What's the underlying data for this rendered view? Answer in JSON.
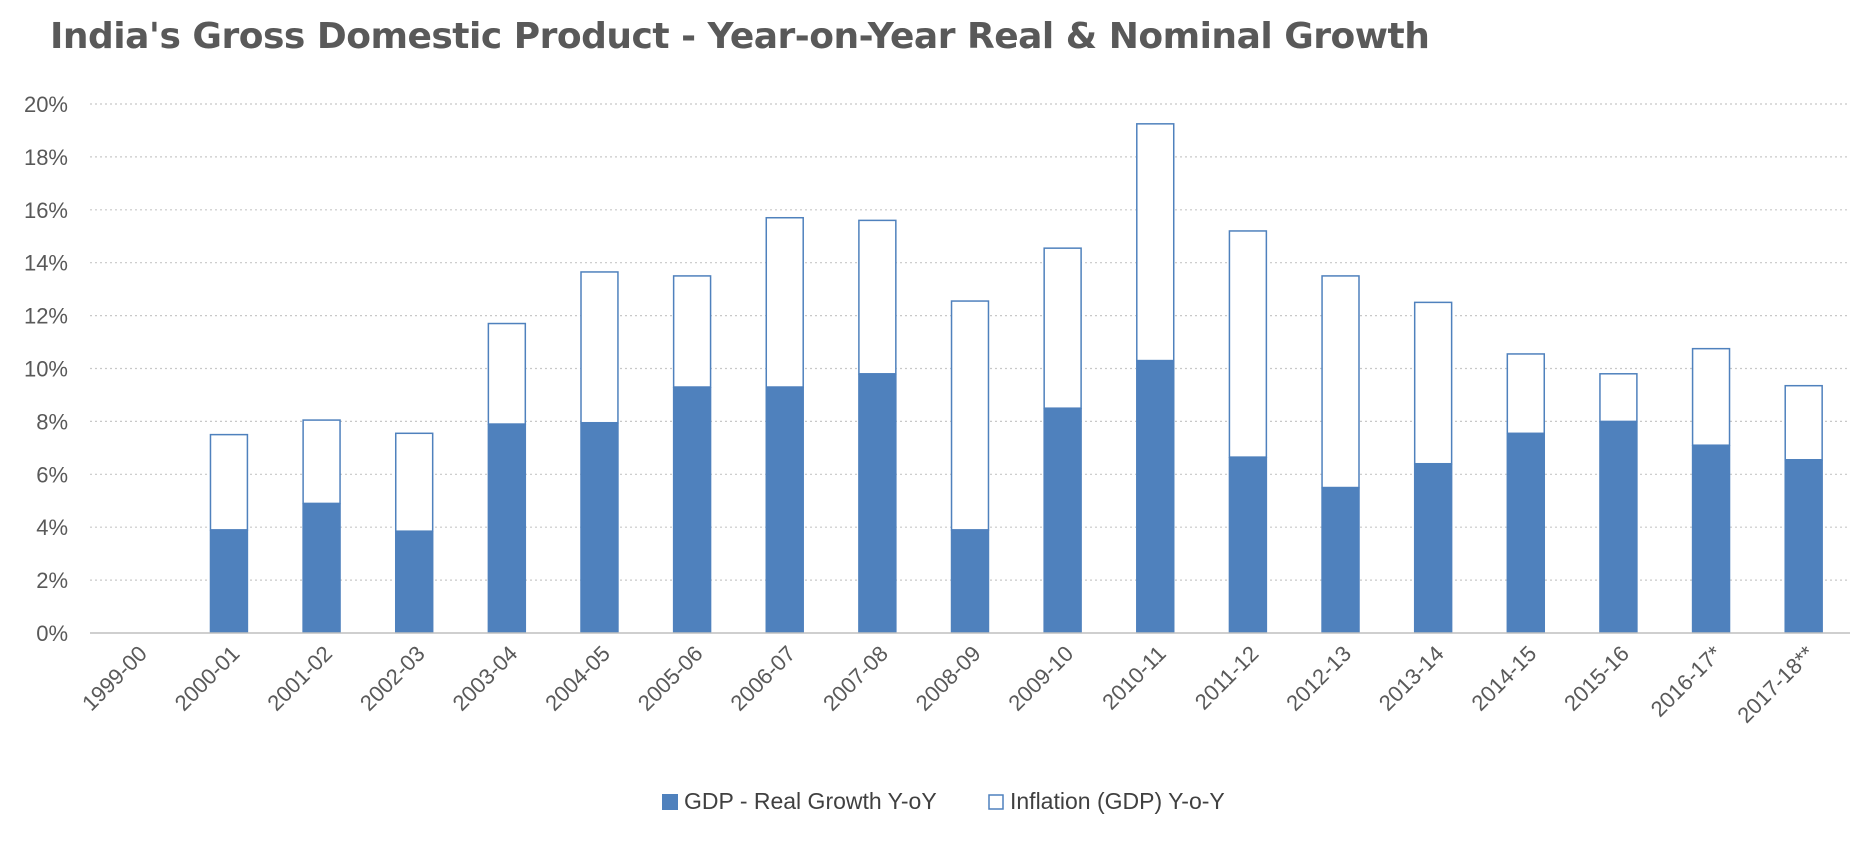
{
  "chart_data": {
    "type": "bar",
    "stacked": true,
    "title": "India's Gross Domestic Product - Year-on-Year Real & Nominal Growth",
    "xlabel": "",
    "ylabel": "",
    "categories": [
      "1999-00",
      "2000-01",
      "2001-02",
      "2002-03",
      "2003-04",
      "2004-05",
      "2005-06",
      "2006-07",
      "2007-08",
      "2008-09",
      "2009-10",
      "2010-11",
      "2011-12",
      "2012-13",
      "2013-14",
      "2014-15",
      "2015-16",
      "2016-17*",
      "2017-18**"
    ],
    "series": [
      {
        "name": "GDP - Real Growth Y-oY",
        "color": "#4f81bd",
        "fill": "solid",
        "values": [
          null,
          3.9,
          4.9,
          3.85,
          7.9,
          7.95,
          9.3,
          9.3,
          9.8,
          3.9,
          8.5,
          10.3,
          6.65,
          5.5,
          6.4,
          7.55,
          8.0,
          7.1,
          6.55
        ]
      },
      {
        "name": "Inflation (GDP) Y-o-Y",
        "color": "#4f81bd",
        "fill": "outline",
        "values": [
          null,
          3.6,
          3.15,
          3.7,
          3.8,
          5.7,
          4.2,
          6.4,
          5.8,
          8.65,
          6.05,
          8.95,
          8.55,
          8.0,
          6.1,
          3.0,
          1.8,
          3.65,
          2.8
        ]
      }
    ],
    "ylim": [
      0,
      20
    ],
    "yticks": [
      0,
      2,
      4,
      6,
      8,
      10,
      12,
      14,
      16,
      18,
      20
    ],
    "ytick_suffix": "%",
    "grid": "horizontal dotted",
    "legend_position": "bottom"
  }
}
